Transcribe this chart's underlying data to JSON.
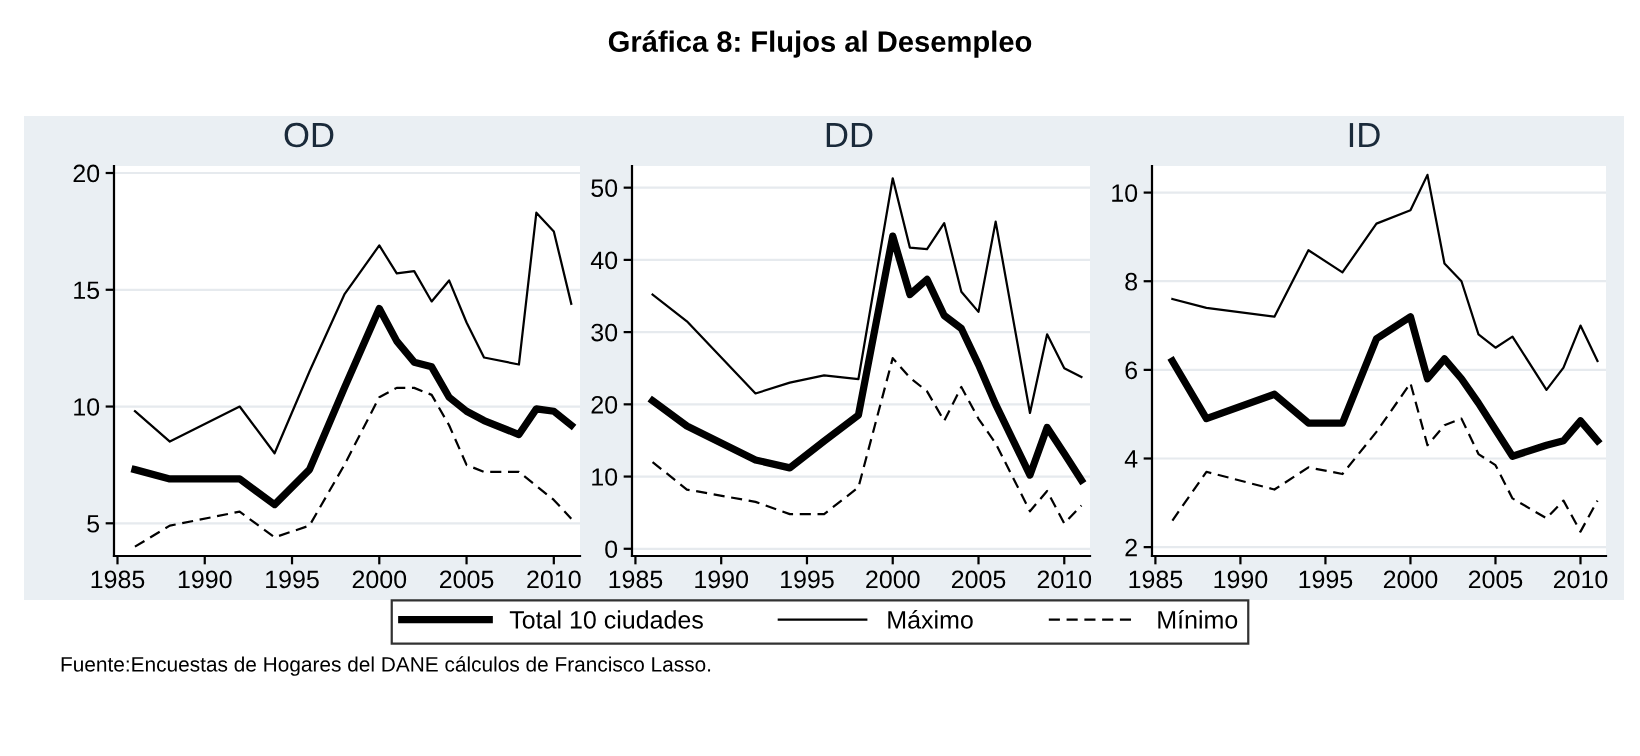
{
  "chart_data": [
    {
      "type": "line",
      "title": "OD",
      "x": [
        1986,
        1988,
        1992,
        1994,
        1996,
        1998,
        2000,
        2001,
        2002,
        2003,
        2004,
        2005,
        2006,
        2008,
        2009,
        2010,
        2011
      ],
      "series": [
        {
          "name": "Total 10 ciudades",
          "color": "#000000",
          "line_style": "solid",
          "values": [
            7.3,
            6.9,
            6.9,
            5.8,
            7.3,
            10.8,
            14.2,
            12.8,
            11.9,
            11.7,
            10.4,
            9.8,
            9.4,
            8.8,
            9.9,
            9.8,
            9.2
          ]
        },
        {
          "name": "Máximo",
          "color": "#000000",
          "line_style": "solid",
          "values": [
            9.8,
            8.5,
            10.0,
            8.0,
            11.5,
            14.8,
            16.9,
            15.7,
            15.8,
            14.5,
            15.4,
            13.6,
            12.1,
            11.8,
            18.3,
            17.5,
            14.4
          ]
        },
        {
          "name": "Mínimo",
          "color": "#000000",
          "line_style": "dashed",
          "values": [
            4.0,
            4.9,
            5.5,
            4.4,
            4.9,
            7.5,
            10.4,
            10.8,
            10.8,
            10.5,
            9.2,
            7.5,
            7.2,
            7.2,
            6.6,
            6.0,
            5.2
          ]
        }
      ],
      "xlim": [
        1984.8,
        2011.5
      ],
      "xticks": [
        1985,
        1990,
        1995,
        2000,
        2005,
        2010
      ],
      "ylim": [
        3.6,
        20.3
      ],
      "yticks": [
        5,
        10,
        15,
        20
      ],
      "grid": "y",
      "legend": "bottom",
      "annotations": [
        "Gráfica 8: Flujos al Desempleo",
        "Fuente:Encuestas de Hogares del DANE cálculos de Francisco Lasso."
      ]
    },
    {
      "type": "line",
      "title": "DD",
      "x": [
        1986,
        1988,
        1992,
        1994,
        1996,
        1998,
        2000,
        2001,
        2002,
        2003,
        2004,
        2005,
        2006,
        2008,
        2009,
        2010,
        2011
      ],
      "series": [
        {
          "color": "#000000",
          "line_style": "solid",
          "values": [
            20.5,
            17.0,
            12.3,
            11.2,
            14.9,
            18.5,
            43.3,
            35.2,
            37.3,
            32.3,
            30.5,
            25.5,
            20.0,
            10.2,
            16.8,
            13.2,
            9.5
          ]
        },
        {
          "color": "#000000",
          "line_style": "solid",
          "values": [
            35.2,
            31.5,
            21.5,
            23.0,
            24.0,
            23.5,
            51.3,
            41.7,
            41.5,
            45.1,
            35.6,
            32.8,
            45.3,
            18.8,
            29.7,
            25.0,
            23.8
          ]
        },
        {
          "color": "#000000",
          "line_style": "dashed",
          "values": [
            12.0,
            8.2,
            6.5,
            4.8,
            4.8,
            8.5,
            26.4,
            23.7,
            21.8,
            17.7,
            22.4,
            18.0,
            14.6,
            5.2,
            8.0,
            3.5,
            6.0
          ]
        }
      ],
      "xlim": [
        1984.8,
        2011.5
      ],
      "xticks": [
        1985,
        1990,
        1995,
        2000,
        2005,
        2010
      ],
      "ylim": [
        -1,
        53
      ],
      "yticks": [
        0,
        10,
        20,
        30,
        40,
        50
      ],
      "grid": "y"
    },
    {
      "type": "line",
      "title": "ID",
      "x": [
        1986,
        1988,
        1992,
        1994,
        1996,
        1998,
        2000,
        2001,
        2002,
        2003,
        2004,
        2005,
        2006,
        2008,
        2009,
        2010,
        2011
      ],
      "series": [
        {
          "color": "#000000",
          "line_style": "solid",
          "values": [
            6.2,
            4.9,
            5.45,
            4.8,
            4.8,
            6.7,
            7.2,
            5.8,
            6.25,
            5.8,
            5.25,
            4.65,
            4.05,
            4.3,
            4.4,
            4.85,
            4.4
          ]
        },
        {
          "color": "#000000",
          "line_style": "solid",
          "values": [
            7.6,
            7.4,
            7.2,
            8.7,
            8.2,
            9.3,
            9.6,
            10.4,
            8.4,
            8.0,
            6.8,
            6.5,
            6.75,
            5.55,
            6.05,
            7.0,
            6.2
          ]
        },
        {
          "color": "#000000",
          "line_style": "dashed",
          "values": [
            2.6,
            3.7,
            3.3,
            3.8,
            3.65,
            4.6,
            5.7,
            4.3,
            4.75,
            4.9,
            4.1,
            3.85,
            3.1,
            2.65,
            3.05,
            2.35,
            3.05
          ]
        }
      ],
      "xlim": [
        1984.8,
        2011.5
      ],
      "xticks": [
        1985,
        1990,
        1995,
        2000,
        2005,
        2010
      ],
      "ylim": [
        1.8,
        10.6
      ],
      "yticks": [
        2,
        4,
        6,
        8,
        10
      ],
      "grid": "y"
    }
  ]
}
